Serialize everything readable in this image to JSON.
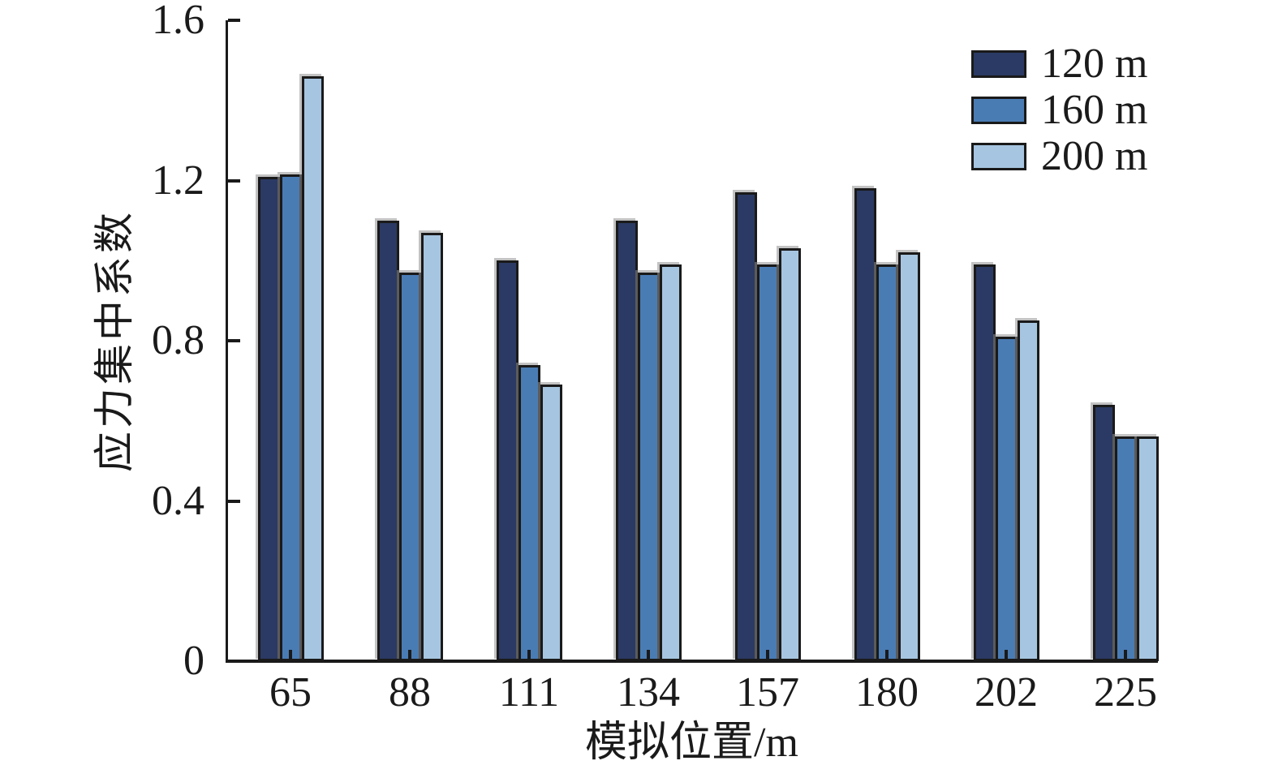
{
  "chart_data": {
    "type": "bar",
    "title": "",
    "xlabel": "模拟位置/m",
    "ylabel": "应力集中系数",
    "categories": [
      "65",
      "88",
      "111",
      "134",
      "157",
      "180",
      "202",
      "225"
    ],
    "series": [
      {
        "name": "120 m",
        "color": "#2b3a64",
        "values": [
          1.21,
          1.1,
          1.0,
          1.1,
          1.17,
          1.18,
          0.99,
          0.64
        ]
      },
      {
        "name": "160 m",
        "color": "#4a7cb4",
        "values": [
          1.215,
          0.97,
          0.74,
          0.97,
          0.99,
          0.99,
          0.81,
          0.56
        ]
      },
      {
        "name": "200 m",
        "color": "#a6c5e0",
        "values": [
          1.46,
          1.07,
          0.69,
          0.99,
          1.03,
          1.02,
          0.85,
          0.56
        ]
      }
    ],
    "ylim": [
      0,
      1.6
    ],
    "yticks": [
      0,
      0.4,
      0.8,
      1.2,
      1.6
    ],
    "ytick_labels": [
      "0",
      "0.4",
      "0.8",
      "1.2",
      "1.6"
    ],
    "grid": false,
    "legend_position": "top-right",
    "axis_color": "#1a1a1a",
    "bar_outline_color": "#1a1a1a",
    "background": "#ffffff"
  }
}
